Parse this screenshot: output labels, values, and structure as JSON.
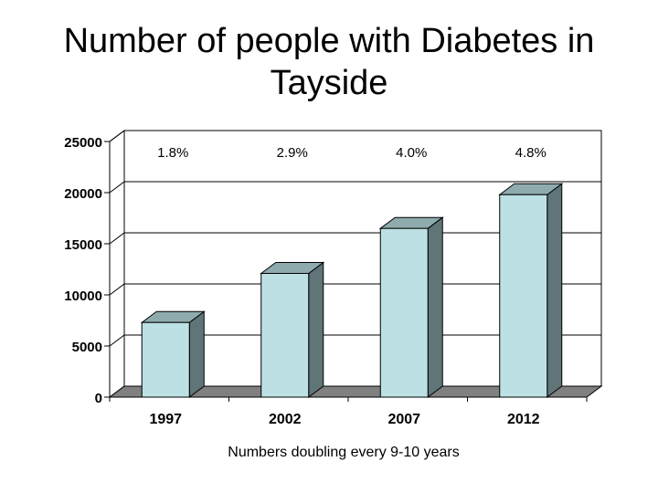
{
  "title_lines": [
    "Number of people with Diabetes in",
    "Tayside"
  ],
  "chart_data": {
    "type": "bar",
    "title": "Number of people with Diabetes in Tayside",
    "categories": [
      "1997",
      "2002",
      "2007",
      "2012"
    ],
    "values": [
      7300,
      12100,
      16500,
      19800
    ],
    "data_labels": [
      "1.8%",
      "2.9%",
      "4.0%",
      "4.8%"
    ],
    "yticks": [
      "0",
      "5000",
      "10000",
      "15000",
      "20000",
      "25000"
    ],
    "ylim": [
      0,
      25000
    ],
    "xlabel": "Numbers doubling every 9-10 years",
    "ylabel": "",
    "grid": true,
    "style": "3d-column"
  },
  "colors": {
    "bar_front": "#bde0e4",
    "bar_top": "#8fabae",
    "bar_side": "#5f7577",
    "floor": "#808080",
    "gridline": "#000000",
    "text": "#000000"
  }
}
